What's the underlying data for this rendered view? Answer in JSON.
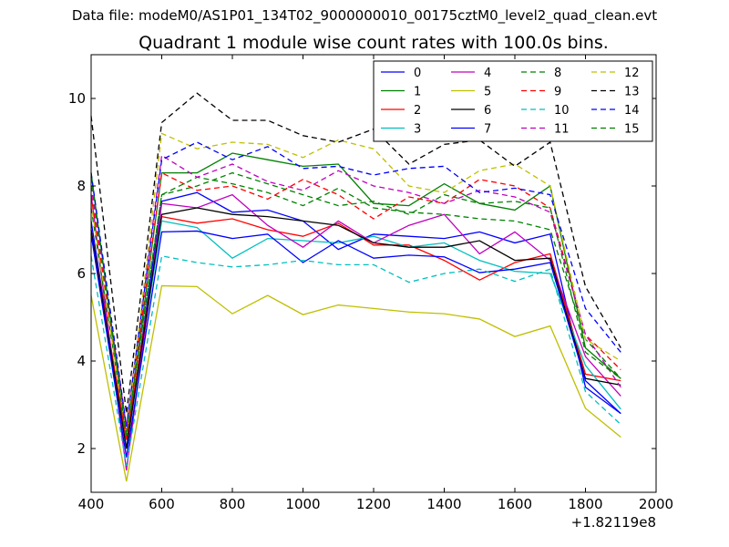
{
  "figure": {
    "suptitle": "Data file: modeM0/AS1P01_134T02_9000000010_00175cztM0_level2_quad_clean.evt",
    "title": "Quadrant 1 module wise count rates with 100.0s bins."
  },
  "chart_data": {
    "type": "line",
    "title": "Quadrant 1 module wise count rates with 100.0s bins.",
    "xlabel": "",
    "ylabel": "",
    "x_offset_label": "+1.82119e8",
    "xlim": [
      400,
      2000
    ],
    "ylim": [
      1,
      11
    ],
    "xticks": [
      400,
      600,
      800,
      1000,
      1200,
      1400,
      1600,
      1800,
      2000
    ],
    "yticks": [
      2,
      4,
      6,
      8,
      10
    ],
    "grid": false,
    "legend": {
      "placement": "top-right",
      "columns": 4
    },
    "x": [
      400,
      500,
      600,
      700,
      800,
      900,
      1000,
      1100,
      1200,
      1300,
      1400,
      1500,
      1600,
      1700,
      1800,
      1900
    ],
    "series": [
      {
        "name": "0",
        "color": "#0000ff",
        "dash": "solid",
        "values": [
          7.2,
          2.0,
          7.65,
          7.85,
          7.4,
          7.45,
          7.2,
          6.55,
          6.9,
          6.85,
          6.8,
          6.95,
          6.7,
          6.9,
          3.4,
          2.8
        ]
      },
      {
        "name": "1",
        "color": "#008000",
        "dash": "solid",
        "values": [
          8.3,
          2.2,
          8.3,
          8.3,
          8.75,
          8.6,
          8.45,
          8.5,
          7.6,
          7.55,
          8.05,
          7.6,
          7.45,
          8.0,
          4.3,
          3.6
        ]
      },
      {
        "name": "2",
        "color": "#ff0000",
        "dash": "solid",
        "values": [
          7.0,
          2.2,
          7.3,
          7.15,
          7.25,
          7.0,
          6.85,
          7.15,
          6.65,
          6.65,
          6.3,
          5.85,
          6.25,
          6.45,
          3.7,
          3.55
        ]
      },
      {
        "name": "3",
        "color": "#00bfbf",
        "dash": "solid",
        "values": [
          6.9,
          2.0,
          7.2,
          7.05,
          6.35,
          6.8,
          6.75,
          6.7,
          6.85,
          6.6,
          6.7,
          6.3,
          6.05,
          6.0,
          3.9,
          2.9
        ]
      },
      {
        "name": "4",
        "color": "#bf00bf",
        "dash": "solid",
        "values": [
          7.8,
          1.5,
          7.6,
          7.5,
          7.8,
          7.1,
          6.6,
          7.2,
          6.7,
          7.1,
          7.35,
          6.45,
          6.95,
          6.3,
          4.1,
          3.2
        ]
      },
      {
        "name": "5",
        "color": "#bfbf00",
        "dash": "solid",
        "values": [
          5.5,
          1.25,
          5.72,
          5.7,
          5.08,
          5.5,
          5.06,
          5.28,
          5.2,
          5.12,
          5.08,
          4.96,
          4.56,
          4.8,
          2.92,
          2.26
        ]
      },
      {
        "name": "6",
        "color": "#000000",
        "dash": "solid",
        "values": [
          7.0,
          2.0,
          7.35,
          7.5,
          7.35,
          7.3,
          7.2,
          7.1,
          6.7,
          6.6,
          6.6,
          6.75,
          6.3,
          6.35,
          3.6,
          3.45
        ]
      },
      {
        "name": "7",
        "color": "#0000ff",
        "dash": "solid",
        "values": [
          6.9,
          1.8,
          6.95,
          6.97,
          6.8,
          6.9,
          6.25,
          6.75,
          6.35,
          6.42,
          6.38,
          6.02,
          6.1,
          6.25,
          3.55,
          2.8
        ]
      },
      {
        "name": "8",
        "color": "#008000",
        "dash": "dashed",
        "values": [
          7.5,
          2.3,
          7.8,
          8.2,
          8.05,
          7.85,
          7.55,
          7.95,
          7.5,
          7.4,
          7.35,
          7.25,
          7.2,
          7.0,
          4.5,
          3.6
        ]
      },
      {
        "name": "9",
        "color": "#ff0000",
        "dash": "dashed",
        "values": [
          7.8,
          2.4,
          8.3,
          7.9,
          8.0,
          7.7,
          8.15,
          7.8,
          7.25,
          7.75,
          7.6,
          8.15,
          8.0,
          7.5,
          4.6,
          3.8
        ]
      },
      {
        "name": "10",
        "color": "#00bfbf",
        "dash": "dashed",
        "values": [
          6.4,
          1.6,
          6.4,
          6.25,
          6.15,
          6.2,
          6.3,
          6.2,
          6.2,
          5.8,
          6.0,
          6.1,
          5.82,
          6.1,
          3.3,
          2.55
        ]
      },
      {
        "name": "11",
        "color": "#bf00bf",
        "dash": "dashed",
        "values": [
          8.0,
          2.5,
          8.7,
          8.2,
          8.5,
          8.1,
          7.9,
          8.35,
          8.0,
          7.85,
          7.6,
          7.9,
          7.75,
          7.4,
          4.6,
          3.4
        ]
      },
      {
        "name": "12",
        "color": "#bfbf00",
        "dash": "dashed",
        "values": [
          7.6,
          2.3,
          9.2,
          8.85,
          9.0,
          8.95,
          8.65,
          9.05,
          8.85,
          8.0,
          7.85,
          8.35,
          8.5,
          8.0,
          4.5,
          4.0
        ]
      },
      {
        "name": "13",
        "color": "#000000",
        "dash": "dashed",
        "values": [
          9.6,
          2.8,
          9.45,
          10.12,
          9.5,
          9.5,
          9.15,
          9.0,
          9.3,
          8.5,
          8.95,
          9.05,
          8.45,
          9.0,
          5.7,
          4.3
        ]
      },
      {
        "name": "14",
        "color": "#0000ff",
        "dash": "dashed",
        "values": [
          8.3,
          2.5,
          8.6,
          9.0,
          8.6,
          8.9,
          8.4,
          8.45,
          8.25,
          8.4,
          8.45,
          7.85,
          7.95,
          7.8,
          5.2,
          4.2
        ]
      },
      {
        "name": "15",
        "color": "#008000",
        "dash": "dashed",
        "values": [
          8.2,
          2.3,
          7.8,
          8.0,
          8.3,
          8.05,
          7.8,
          7.55,
          7.65,
          7.35,
          7.8,
          7.6,
          7.65,
          7.5,
          4.2,
          3.6
        ]
      }
    ]
  }
}
